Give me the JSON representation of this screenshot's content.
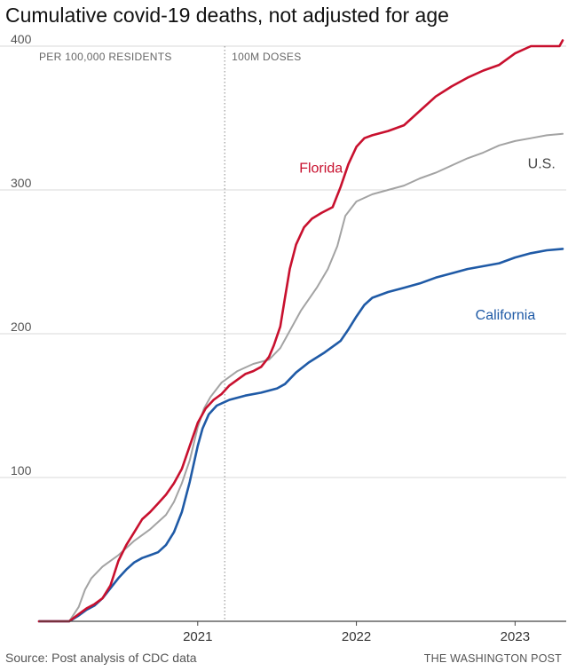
{
  "chart_data": {
    "type": "line",
    "title": "Cumulative covid-19 deaths, not adjusted for age",
    "ylabel": "PER 100,000 RESIDENTS",
    "ylim": [
      0,
      400
    ],
    "xlim": [
      2020.0,
      2023.3
    ],
    "y_ticks": [
      {
        "value": 100,
        "label": "100"
      },
      {
        "value": 200,
        "label": "200"
      },
      {
        "value": 300,
        "label": "300"
      },
      {
        "value": 400,
        "label": "400"
      }
    ],
    "x_ticks": [
      {
        "value": 2021,
        "label": "2021"
      },
      {
        "value": 2022,
        "label": "2022"
      },
      {
        "value": 2023,
        "label": "2023"
      }
    ],
    "annotation": {
      "x": 2021.17,
      "label": "100M DOSES"
    },
    "series": [
      {
        "name": "U.S.",
        "label": "U.S.",
        "color": "#a3a3a3",
        "label_pos": [
          2023.08,
          315
        ],
        "points": [
          [
            2020.0,
            0
          ],
          [
            2020.19,
            0
          ],
          [
            2020.25,
            10
          ],
          [
            2020.29,
            22
          ],
          [
            2020.33,
            30
          ],
          [
            2020.4,
            38
          ],
          [
            2020.5,
            46
          ],
          [
            2020.6,
            56
          ],
          [
            2020.7,
            64
          ],
          [
            2020.8,
            74
          ],
          [
            2020.85,
            83
          ],
          [
            2020.9,
            96
          ],
          [
            2020.95,
            112
          ],
          [
            2021.0,
            135
          ],
          [
            2021.04,
            148
          ],
          [
            2021.08,
            156
          ],
          [
            2021.15,
            166
          ],
          [
            2021.25,
            174
          ],
          [
            2021.35,
            179
          ],
          [
            2021.45,
            182
          ],
          [
            2021.52,
            190
          ],
          [
            2021.58,
            202
          ],
          [
            2021.65,
            216
          ],
          [
            2021.75,
            232
          ],
          [
            2021.82,
            245
          ],
          [
            2021.88,
            261
          ],
          [
            2021.93,
            282
          ],
          [
            2022.0,
            292
          ],
          [
            2022.1,
            297
          ],
          [
            2022.2,
            300
          ],
          [
            2022.3,
            303
          ],
          [
            2022.4,
            308
          ],
          [
            2022.5,
            312
          ],
          [
            2022.6,
            317
          ],
          [
            2022.7,
            322
          ],
          [
            2022.8,
            326
          ],
          [
            2022.9,
            331
          ],
          [
            2023.0,
            334
          ],
          [
            2023.1,
            336
          ],
          [
            2023.2,
            338
          ],
          [
            2023.3,
            339
          ]
        ]
      },
      {
        "name": "California",
        "label": "California",
        "color": "#1f5aa6",
        "label_pos": [
          2022.75,
          210
        ],
        "points": [
          [
            2020.0,
            0
          ],
          [
            2020.19,
            0
          ],
          [
            2020.25,
            4
          ],
          [
            2020.3,
            8
          ],
          [
            2020.35,
            11
          ],
          [
            2020.4,
            16
          ],
          [
            2020.45,
            23
          ],
          [
            2020.5,
            30
          ],
          [
            2020.55,
            36
          ],
          [
            2020.6,
            41
          ],
          [
            2020.65,
            44
          ],
          [
            2020.7,
            46
          ],
          [
            2020.75,
            48
          ],
          [
            2020.8,
            53
          ],
          [
            2020.85,
            62
          ],
          [
            2020.9,
            76
          ],
          [
            2020.95,
            97
          ],
          [
            2021.0,
            122
          ],
          [
            2021.03,
            134
          ],
          [
            2021.07,
            144
          ],
          [
            2021.12,
            150
          ],
          [
            2021.2,
            154
          ],
          [
            2021.3,
            157
          ],
          [
            2021.4,
            159
          ],
          [
            2021.5,
            162
          ],
          [
            2021.55,
            165
          ],
          [
            2021.62,
            173
          ],
          [
            2021.7,
            180
          ],
          [
            2021.8,
            187
          ],
          [
            2021.85,
            191
          ],
          [
            2021.9,
            195
          ],
          [
            2021.95,
            203
          ],
          [
            2022.0,
            212
          ],
          [
            2022.05,
            220
          ],
          [
            2022.1,
            225
          ],
          [
            2022.2,
            229
          ],
          [
            2022.3,
            232
          ],
          [
            2022.4,
            235
          ],
          [
            2022.5,
            239
          ],
          [
            2022.6,
            242
          ],
          [
            2022.7,
            245
          ],
          [
            2022.8,
            247
          ],
          [
            2022.9,
            249
          ],
          [
            2023.0,
            253
          ],
          [
            2023.1,
            256
          ],
          [
            2023.2,
            258
          ],
          [
            2023.3,
            259
          ]
        ]
      },
      {
        "name": "Florida",
        "label": "Florida",
        "color": "#c8102e",
        "label_pos": [
          2021.64,
          312
        ],
        "points": [
          [
            2020.0,
            0
          ],
          [
            2020.19,
            0
          ],
          [
            2020.25,
            5
          ],
          [
            2020.3,
            9
          ],
          [
            2020.35,
            12
          ],
          [
            2020.4,
            16
          ],
          [
            2020.45,
            25
          ],
          [
            2020.5,
            42
          ],
          [
            2020.55,
            53
          ],
          [
            2020.6,
            62
          ],
          [
            2020.65,
            71
          ],
          [
            2020.7,
            76
          ],
          [
            2020.75,
            82
          ],
          [
            2020.8,
            88
          ],
          [
            2020.85,
            96
          ],
          [
            2020.9,
            106
          ],
          [
            2020.95,
            122
          ],
          [
            2021.0,
            138
          ],
          [
            2021.05,
            148
          ],
          [
            2021.1,
            154
          ],
          [
            2021.15,
            158
          ],
          [
            2021.2,
            164
          ],
          [
            2021.25,
            168
          ],
          [
            2021.3,
            172
          ],
          [
            2021.35,
            174
          ],
          [
            2021.4,
            177
          ],
          [
            2021.45,
            184
          ],
          [
            2021.48,
            192
          ],
          [
            2021.52,
            205
          ],
          [
            2021.55,
            225
          ],
          [
            2021.58,
            245
          ],
          [
            2021.62,
            262
          ],
          [
            2021.67,
            274
          ],
          [
            2021.72,
            280
          ],
          [
            2021.78,
            284
          ],
          [
            2021.85,
            288
          ],
          [
            2021.9,
            302
          ],
          [
            2021.95,
            318
          ],
          [
            2022.0,
            330
          ],
          [
            2022.05,
            336
          ],
          [
            2022.1,
            338
          ],
          [
            2022.2,
            341
          ],
          [
            2022.3,
            345
          ],
          [
            2022.4,
            355
          ],
          [
            2022.5,
            365
          ],
          [
            2022.6,
            372
          ],
          [
            2022.7,
            378
          ],
          [
            2022.8,
            383
          ],
          [
            2022.9,
            387
          ],
          [
            2023.0,
            395
          ],
          [
            2023.1,
            400
          ],
          [
            2023.2,
            400
          ],
          [
            2023.28,
            400
          ],
          [
            2023.3,
            404
          ]
        ]
      }
    ]
  },
  "footer": {
    "source": "Source: Post analysis of CDC data",
    "credit": "THE WASHINGTON POST"
  }
}
